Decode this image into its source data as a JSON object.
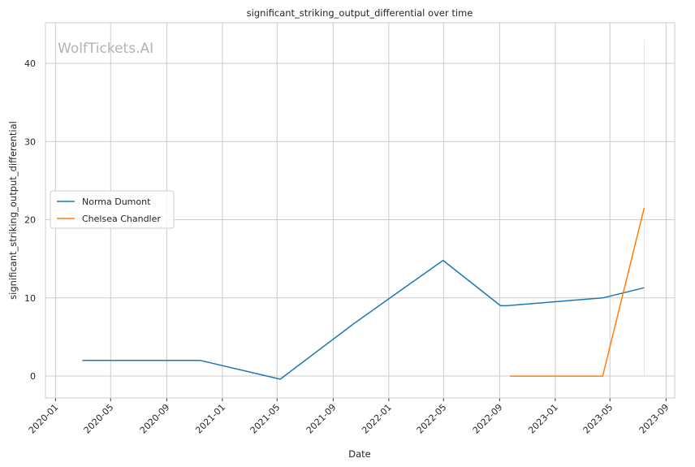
{
  "chart_data": {
    "type": "line",
    "title": "significant_striking_output_differential over time",
    "xlabel": "Date",
    "ylabel": "significant_striking_output_differential",
    "watermark": "WolfTickets.AI",
    "x_ticks": [
      "2020-01",
      "2020-05",
      "2020-09",
      "2021-01",
      "2021-05",
      "2021-09",
      "2022-01",
      "2022-05",
      "2022-09",
      "2023-01",
      "2023-05",
      "2023-09"
    ],
    "xlim": [
      "2019-12-10",
      "2023-09-20"
    ],
    "y_ticks": [
      0,
      10,
      20,
      30,
      40
    ],
    "ylim": [
      -2.8,
      45.2
    ],
    "grid": true,
    "legend_position": "center-left",
    "series": [
      {
        "name": "Norma Dumont",
        "color": "#1f77b4",
        "points": [
          {
            "x": "2020-02-29",
            "y": 2.0
          },
          {
            "x": "2020-11-14",
            "y": 2.0
          },
          {
            "x": "2021-05-08",
            "y": -0.4
          },
          {
            "x": "2021-10-16",
            "y": 6.7
          },
          {
            "x": "2022-04-30",
            "y": 14.8
          },
          {
            "x": "2022-09-03",
            "y": 9.0
          },
          {
            "x": "2022-09-17",
            "y": 9.0
          },
          {
            "x": "2023-04-15",
            "y": 10.0
          },
          {
            "x": "2023-07-15",
            "y": 11.3
          }
        ]
      },
      {
        "name": "Chelsea Chandler",
        "color": "#ff7f0e",
        "points": [
          {
            "x": "2022-09-24",
            "y": 0.0
          },
          {
            "x": "2023-04-15",
            "y": 0.0
          },
          {
            "x": "2023-07-15",
            "y": 21.5
          }
        ]
      }
    ],
    "vertical_marker": {
      "x": "2023-07-15",
      "y_from": 0,
      "y_to": 43,
      "color": "#ff7f0e"
    }
  }
}
